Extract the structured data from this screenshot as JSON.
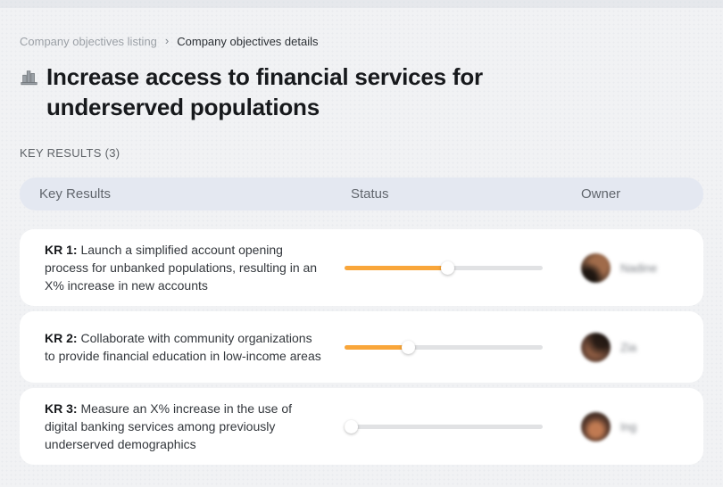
{
  "breadcrumb": {
    "separator": "›",
    "items": [
      {
        "label": "Company objectives listing"
      },
      {
        "label": "Company objectives details"
      }
    ]
  },
  "objective": {
    "icon": "city-buildings-icon",
    "title": "Increase access to financial services for underserved populations"
  },
  "section": {
    "label": "KEY RESULTS (3)"
  },
  "table": {
    "headers": {
      "key_results": "Key Results",
      "status": "Status",
      "owner": "Owner"
    }
  },
  "rows": [
    {
      "label": "KR 1:",
      "description": "Launch a simplified account opening process for unbanked populations, resulting in an X% increase in new accounts",
      "progress_percent": 52,
      "owner": {
        "name": "Nadine",
        "avatar": "blurred-person-photo"
      }
    },
    {
      "label": "KR 2:",
      "description": "Collaborate with community organizations to provide financial education in low-income areas",
      "progress_percent": 32,
      "owner": {
        "name": "Zia",
        "avatar": "blurred-person-photo"
      }
    },
    {
      "label": "KR 3:",
      "description": "Measure an X% increase in the use of digital banking services among previously underserved demographics",
      "progress_percent": 3,
      "owner": {
        "name": "Ing",
        "avatar": "blurred-person-photo"
      }
    }
  ],
  "colors": {
    "page_bg": "#F1F2F4",
    "header_bg": "#E4E8F1",
    "card_bg": "#FFFFFF",
    "accent_orange": "#F9A63A",
    "track_gray": "#E1E2E4"
  }
}
